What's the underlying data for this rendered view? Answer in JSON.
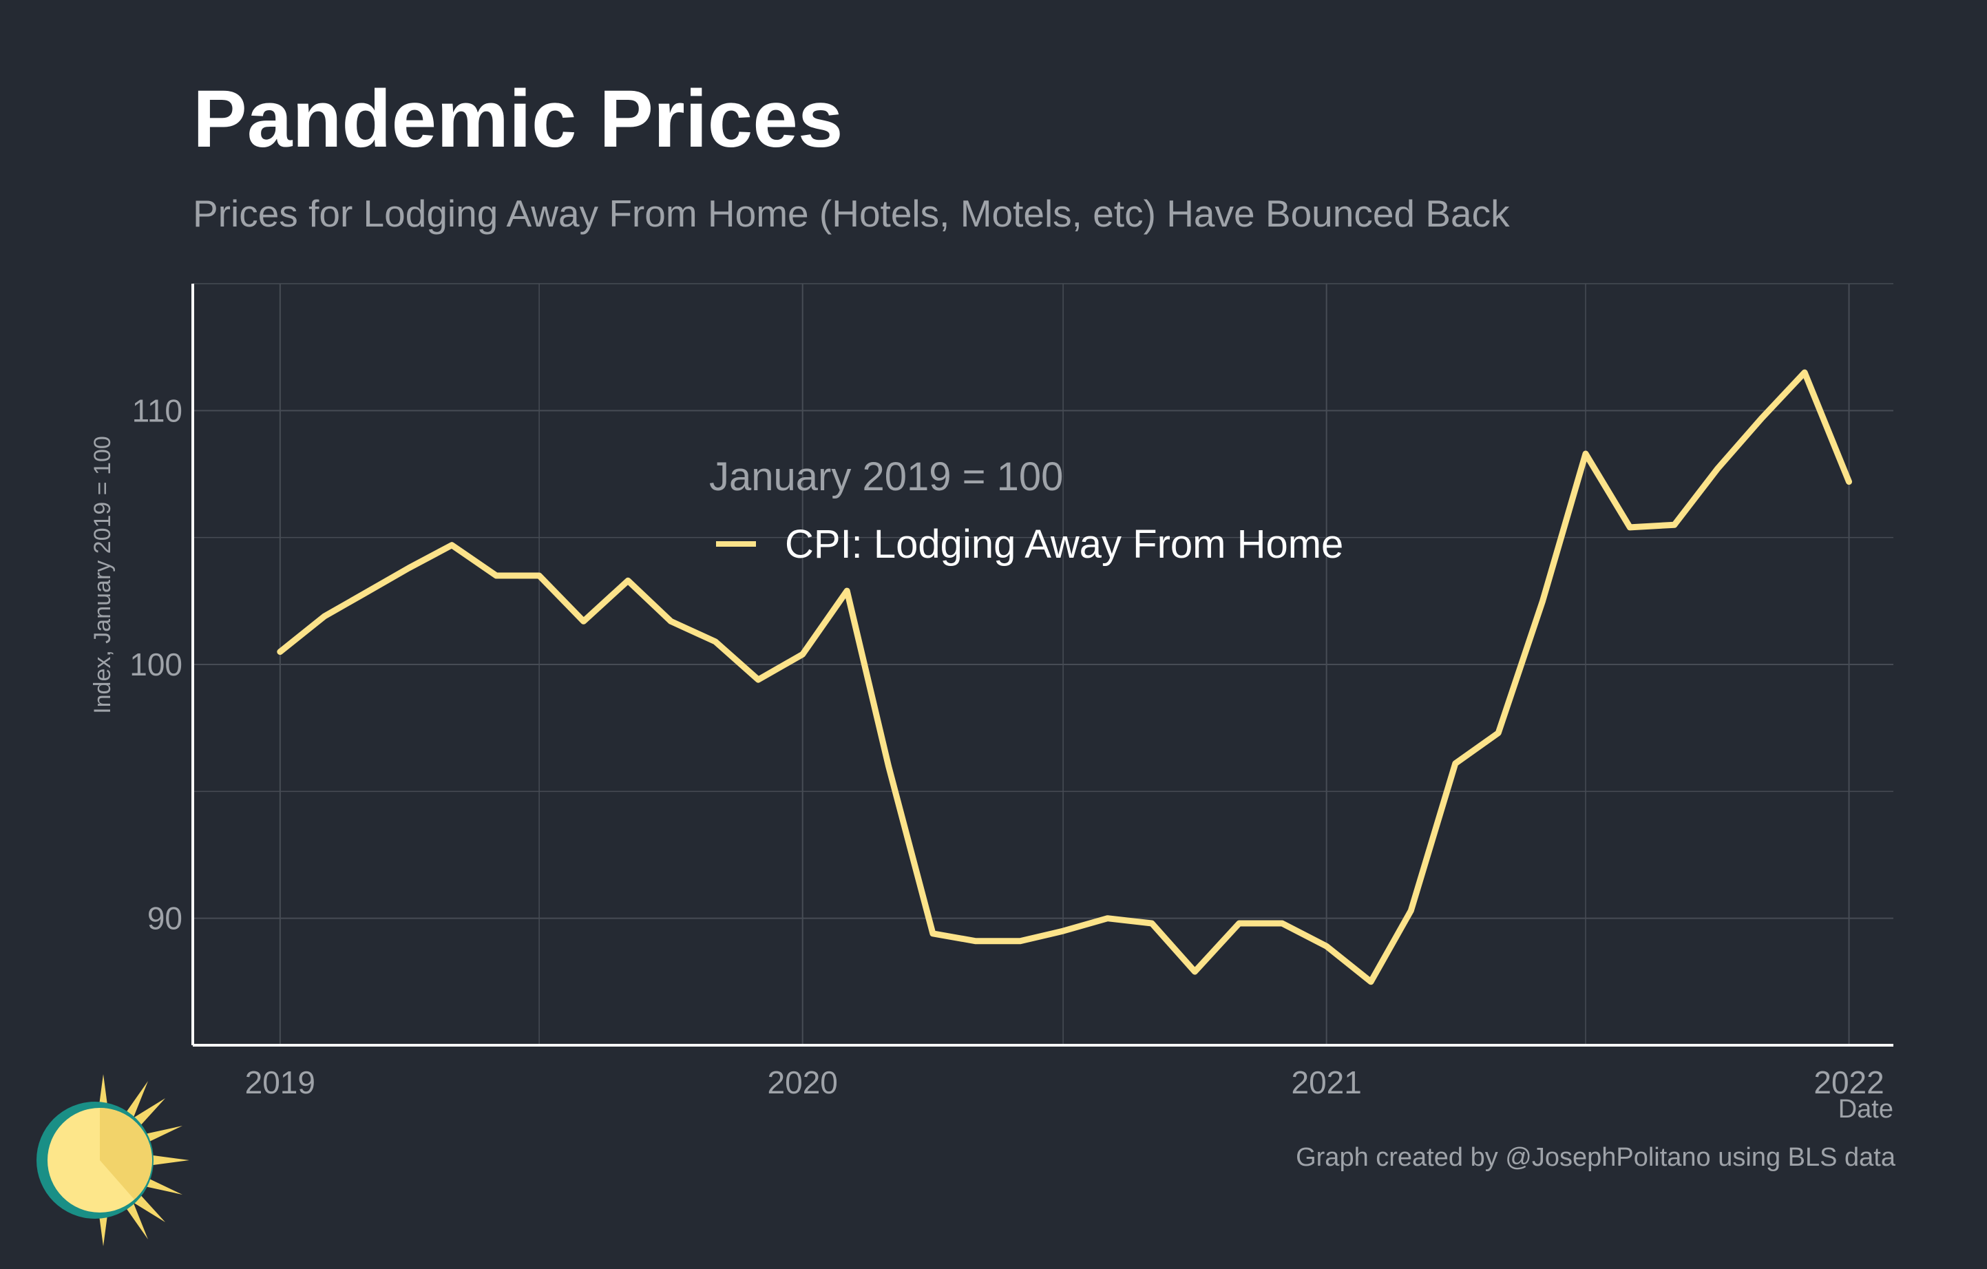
{
  "header": {
    "title": "Pandemic Prices",
    "subtitle": "Prices for Lodging Away From Home (Hotels, Motels, etc) Have Bounced Back"
  },
  "footer": {
    "credit": "Graph created by @JosephPolitano using BLS data"
  },
  "colors": {
    "background": "#252a33",
    "grid": "#474c55",
    "line": "#fce38a",
    "axis": "#ffffff",
    "muted_text": "#9fa3a9"
  },
  "chart_data": {
    "type": "line",
    "xlabel": "Date",
    "ylabel": "Index, January 2019 = 100",
    "x_ticks": [
      "2019",
      "2020",
      "2021",
      "2022"
    ],
    "y_ticks": [
      90,
      100,
      110
    ],
    "xlim": [
      "2018-11-01",
      "2022-02-01"
    ],
    "ylim": [
      85,
      115
    ],
    "grid": true,
    "legend_title": "January 2019 = 100",
    "legend_position": "upper-center",
    "series": [
      {
        "name": "CPI: Lodging Away From Home",
        "points": [
          [
            "2019-01-01",
            100.5
          ],
          [
            "2019-02-01",
            101.9
          ],
          [
            "2019-03-01",
            102.8
          ],
          [
            "2019-04-01",
            103.8
          ],
          [
            "2019-05-01",
            104.7
          ],
          [
            "2019-06-01",
            103.5
          ],
          [
            "2019-07-01",
            103.5
          ],
          [
            "2019-08-01",
            101.7
          ],
          [
            "2019-09-01",
            103.3
          ],
          [
            "2019-10-01",
            101.7
          ],
          [
            "2019-11-01",
            100.9
          ],
          [
            "2019-12-01",
            99.4
          ],
          [
            "2020-01-01",
            100.4
          ],
          [
            "2020-02-01",
            102.9
          ],
          [
            "2020-03-01",
            96.0
          ],
          [
            "2020-04-01",
            89.4
          ],
          [
            "2020-05-01",
            89.1
          ],
          [
            "2020-06-01",
            89.1
          ],
          [
            "2020-07-01",
            89.5
          ],
          [
            "2020-08-01",
            90.0
          ],
          [
            "2020-09-01",
            89.8
          ],
          [
            "2020-10-01",
            87.9
          ],
          [
            "2020-11-01",
            89.8
          ],
          [
            "2020-12-01",
            89.8
          ],
          [
            "2021-01-01",
            88.9
          ],
          [
            "2021-02-01",
            87.5
          ],
          [
            "2021-03-01",
            90.3
          ],
          [
            "2021-04-01",
            96.1
          ],
          [
            "2021-05-01",
            97.3
          ],
          [
            "2021-06-01",
            102.5
          ],
          [
            "2021-07-01",
            108.3
          ],
          [
            "2021-08-01",
            105.4
          ],
          [
            "2021-09-01",
            105.5
          ],
          [
            "2021-10-01",
            107.7
          ],
          [
            "2021-11-01",
            109.7
          ],
          [
            "2021-12-01",
            111.5
          ],
          [
            "2022-01-01",
            107.2
          ]
        ]
      }
    ]
  }
}
